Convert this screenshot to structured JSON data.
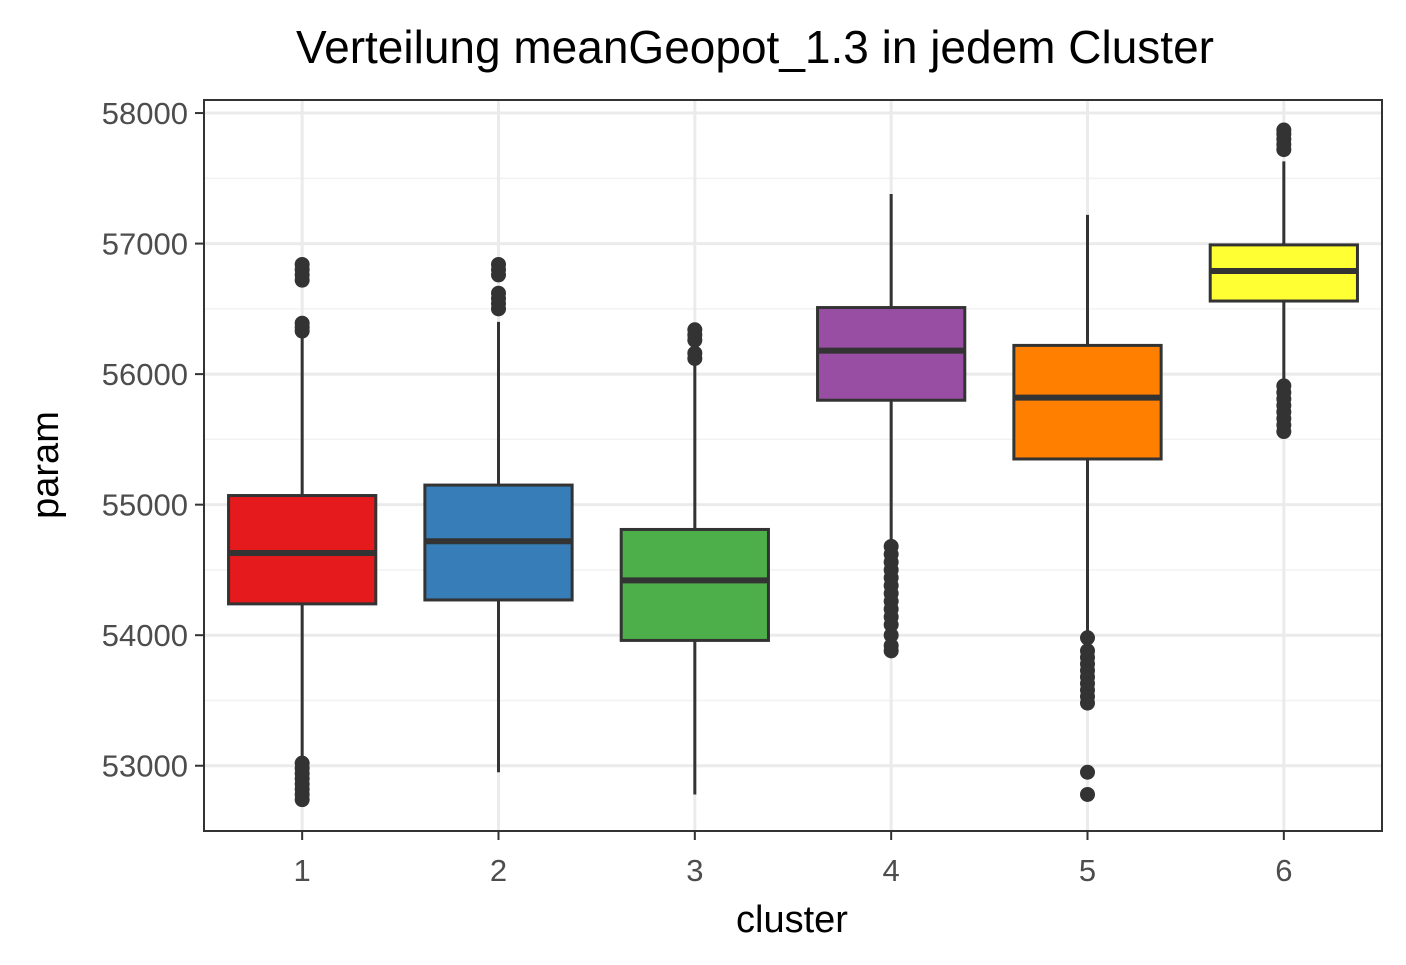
{
  "chart_data": {
    "type": "boxplot",
    "title": "Verteilung meanGeopot_1.3 in jedem Cluster",
    "xlabel": "cluster",
    "ylabel": "param",
    "categories": [
      "1",
      "2",
      "3",
      "4",
      "5",
      "6"
    ],
    "ylim": [
      52500,
      58100
    ],
    "yticks": [
      53000,
      54000,
      55000,
      56000,
      57000,
      58000
    ],
    "grid": true,
    "legend": "none",
    "boxes": [
      {
        "cluster": "1",
        "color": "#e41a1c",
        "whisker_low": 53050,
        "q1": 54240,
        "median": 54630,
        "q3": 55070,
        "whisker_high": 56300,
        "outliers": [
          52740,
          52780,
          52820,
          52860,
          52900,
          52940,
          52980,
          53020,
          56330,
          56360,
          56390,
          56720,
          56760,
          56800,
          56840
        ]
      },
      {
        "cluster": "2",
        "color": "#377eb8",
        "whisker_low": 52950,
        "q1": 54270,
        "median": 54720,
        "q3": 55150,
        "whisker_high": 56400,
        "outliers": [
          56500,
          56540,
          56580,
          56620,
          56760,
          56800,
          56840
        ]
      },
      {
        "cluster": "3",
        "color": "#4daf4a",
        "whisker_low": 52780,
        "q1": 53960,
        "median": 54420,
        "q3": 54810,
        "whisker_high": 56080,
        "outliers": [
          56120,
          56160,
          56260,
          56300,
          56340
        ]
      },
      {
        "cluster": "4",
        "color": "#984ea3",
        "whisker_low": 54720,
        "q1": 55800,
        "median": 56180,
        "q3": 56510,
        "whisker_high": 57380,
        "outliers": [
          53880,
          53920,
          54000,
          54080,
          54140,
          54200,
          54260,
          54320,
          54380,
          54440,
          54500,
          54560,
          54620,
          54680
        ]
      },
      {
        "cluster": "5",
        "color": "#ff7f00",
        "whisker_low": 54000,
        "q1": 55350,
        "median": 55820,
        "q3": 56220,
        "whisker_high": 57220,
        "outliers": [
          52780,
          52950,
          53480,
          53530,
          53580,
          53630,
          53680,
          53730,
          53780,
          53830,
          53880,
          53980
        ]
      },
      {
        "cluster": "6",
        "color": "#ffff33",
        "whisker_low": 55950,
        "q1": 56560,
        "median": 56790,
        "q3": 56990,
        "whisker_high": 57630,
        "outliers": [
          55560,
          55610,
          55660,
          55710,
          55760,
          55810,
          55860,
          55910,
          57720,
          57760,
          57800,
          57840,
          57870
        ]
      }
    ]
  }
}
